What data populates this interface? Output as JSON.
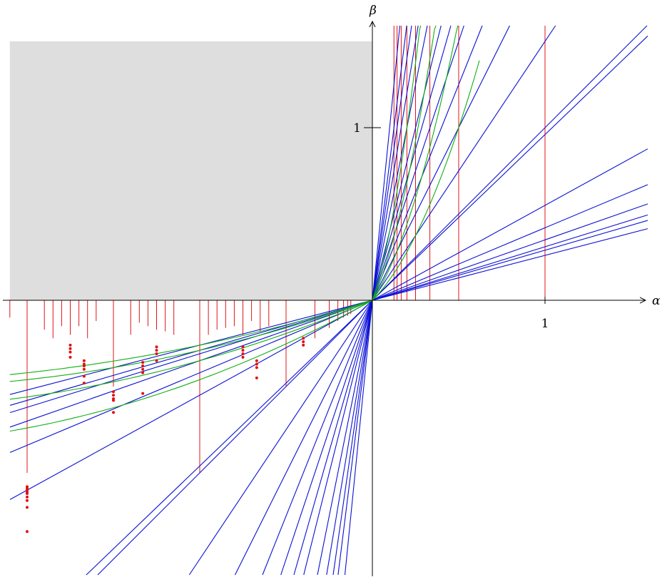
{
  "labels": {
    "x_axis": "α",
    "y_axis": "β",
    "x_tick": "1",
    "y_tick": "1"
  },
  "colors": {
    "region": "#dedede",
    "vertical_lines": "#e0141a",
    "rays": "#0a10d4",
    "curves": "#10b010",
    "dots": "#e01010",
    "axes": "#000000"
  },
  "chart_data": {
    "type": "diagram",
    "xlim": [
      -2.13,
      1.6
    ],
    "ylim": [
      -1.6,
      1.6
    ],
    "shaded_region": {
      "x": [
        -2.1,
        0
      ],
      "y": [
        0,
        1.5
      ]
    },
    "rays_through_origin": {
      "slopes": [
        1,
        1.5,
        2,
        2.5,
        3,
        3.5,
        4,
        5,
        6,
        7,
        8,
        10,
        0.96,
        0.55,
        0.42,
        0.35,
        0.31,
        0.29,
        0.26
      ]
    },
    "curves_through_origin": {
      "positive": [
        {
          "a": 1.0,
          "b": 0.0,
          "c": 4.0,
          "x_end": 0.62
        },
        {
          "a": 1.5,
          "b": 0.0,
          "c": 7.0,
          "x_end": 0.55
        },
        {
          "a": 2.2,
          "b": 0.0,
          "c": 12.0,
          "x_end": 0.48
        },
        {
          "a": 3.0,
          "b": 0.0,
          "c": 20.0,
          "x_end": 0.41
        }
      ],
      "negative": [
        {
          "a": 0.55,
          "b": 0.09,
          "x_start": -2.1
        },
        {
          "a": 0.42,
          "b": 0.07,
          "x_start": -2.1
        },
        {
          "a": 0.35,
          "b": 0.06,
          "x_start": -2.1
        },
        {
          "a": 0.31,
          "b": 0.05,
          "x_start": -2.1
        }
      ]
    },
    "vertical_lines_positive": [
      {
        "x": 0.125,
        "y_max": 1.5
      },
      {
        "x": 0.143,
        "y_max": 1.5
      },
      {
        "x": 0.167,
        "y_max": 1.5
      },
      {
        "x": 0.2,
        "y_max": 1.5
      },
      {
        "x": 0.25,
        "y_max": 1.5
      },
      {
        "x": 0.333,
        "y_max": 1.5
      },
      {
        "x": 0.5,
        "y_max": 1.5
      },
      {
        "x": 1.0,
        "y_max": 1.5
      }
    ],
    "vertical_lines_negative": [
      {
        "x": -0.125,
        "y_min": -0.08
      },
      {
        "x": -0.143,
        "y_min": -0.09
      },
      {
        "x": -0.167,
        "y_min": -0.1
      },
      {
        "x": -0.2,
        "y_min": -0.12
      },
      {
        "x": -0.25,
        "y_min": -0.16
      },
      {
        "x": -0.333,
        "y_min": -0.22
      },
      {
        "x": -0.5,
        "y_min": -0.5
      },
      {
        "x": -0.6,
        "y_min": -0.15
      },
      {
        "x": -0.65,
        "y_min": -0.18
      },
      {
        "x": -0.7,
        "y_min": -0.12
      },
      {
        "x": -0.75,
        "y_min": -0.2
      },
      {
        "x": -0.8,
        "y_min": -0.15
      },
      {
        "x": -0.85,
        "y_min": -0.16
      },
      {
        "x": -0.9,
        "y_min": -0.17
      },
      {
        "x": -0.95,
        "y_min": -0.2
      },
      {
        "x": -1.0,
        "y_min": -1.0
      },
      {
        "x": -1.15,
        "y_min": -0.2
      },
      {
        "x": -1.2,
        "y_min": -0.18
      },
      {
        "x": -1.25,
        "y_min": -0.17
      },
      {
        "x": -1.3,
        "y_min": -0.15
      },
      {
        "x": -1.35,
        "y_min": -0.13
      },
      {
        "x": -1.4,
        "y_min": -0.2
      },
      {
        "x": -1.5,
        "y_min": -0.5
      },
      {
        "x": -1.6,
        "y_min": -0.12
      },
      {
        "x": -1.65,
        "y_min": -0.22
      },
      {
        "x": -1.7,
        "y_min": -0.15
      },
      {
        "x": -1.75,
        "y_min": -0.2
      },
      {
        "x": -1.8,
        "y_min": -0.15
      },
      {
        "x": -1.85,
        "y_min": -0.22
      },
      {
        "x": -1.9,
        "y_min": -0.17
      },
      {
        "x": -2.0,
        "y_min": -1.0
      },
      {
        "x": -2.1,
        "y_min": -0.1
      }
    ],
    "dots": [
      {
        "x": -2.0,
        "y": -1.08
      },
      {
        "x": -2.0,
        "y": -1.09
      },
      {
        "x": -2.0,
        "y": -1.1
      },
      {
        "x": -2.0,
        "y": -1.11
      },
      {
        "x": -2.0,
        "y": -1.12
      },
      {
        "x": -2.0,
        "y": -1.14
      },
      {
        "x": -2.0,
        "y": -1.16
      },
      {
        "x": -2.0,
        "y": -1.2
      },
      {
        "x": -2.0,
        "y": -1.34
      },
      {
        "x": -1.75,
        "y": -0.26
      },
      {
        "x": -1.75,
        "y": -0.28
      },
      {
        "x": -1.75,
        "y": -0.3
      },
      {
        "x": -1.75,
        "y": -0.33
      },
      {
        "x": -1.67,
        "y": -0.35
      },
      {
        "x": -1.67,
        "y": -0.37
      },
      {
        "x": -1.67,
        "y": -0.38
      },
      {
        "x": -1.67,
        "y": -0.4
      },
      {
        "x": -1.67,
        "y": -0.44
      },
      {
        "x": -1.67,
        "y": -0.48
      },
      {
        "x": -1.5,
        "y": -0.53
      },
      {
        "x": -1.5,
        "y": -0.55
      },
      {
        "x": -1.5,
        "y": -0.57
      },
      {
        "x": -1.5,
        "y": -0.58
      },
      {
        "x": -1.5,
        "y": -0.65
      },
      {
        "x": -1.33,
        "y": -0.36
      },
      {
        "x": -1.33,
        "y": -0.38
      },
      {
        "x": -1.33,
        "y": -0.4
      },
      {
        "x": -1.33,
        "y": -0.42
      },
      {
        "x": -1.33,
        "y": -0.54
      },
      {
        "x": -1.25,
        "y": -0.27
      },
      {
        "x": -1.25,
        "y": -0.29
      },
      {
        "x": -1.25,
        "y": -0.31
      },
      {
        "x": -1.25,
        "y": -0.35
      },
      {
        "x": -0.75,
        "y": -0.27
      },
      {
        "x": -0.75,
        "y": -0.29
      },
      {
        "x": -0.75,
        "y": -0.31
      },
      {
        "x": -0.75,
        "y": -0.33
      },
      {
        "x": -0.67,
        "y": -0.35
      },
      {
        "x": -0.67,
        "y": -0.37
      },
      {
        "x": -0.67,
        "y": -0.39
      },
      {
        "x": -0.67,
        "y": -0.45
      },
      {
        "x": -0.4,
        "y": -0.22
      },
      {
        "x": -0.4,
        "y": -0.24
      },
      {
        "x": -0.4,
        "y": -0.26
      }
    ]
  }
}
